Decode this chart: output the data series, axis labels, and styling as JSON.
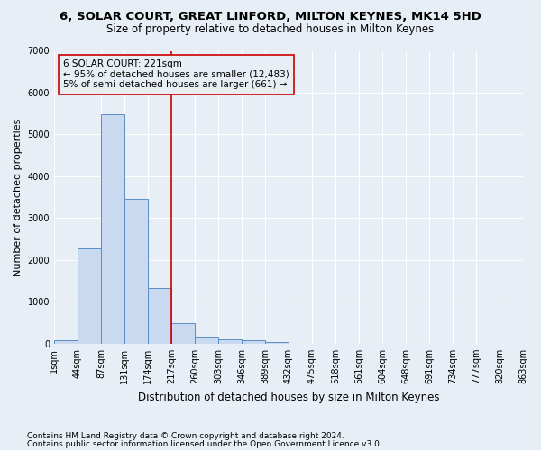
{
  "title1": "6, SOLAR COURT, GREAT LINFORD, MILTON KEYNES, MK14 5HD",
  "title2": "Size of property relative to detached houses in Milton Keynes",
  "xlabel": "Distribution of detached houses by size in Milton Keynes",
  "ylabel": "Number of detached properties",
  "bar_values": [
    75,
    2280,
    5480,
    3450,
    1320,
    480,
    165,
    105,
    75,
    40,
    0,
    0,
    0,
    0,
    0,
    0,
    0,
    0,
    0,
    0
  ],
  "bar_labels": [
    "1sqm",
    "44sqm",
    "87sqm",
    "131sqm",
    "174sqm",
    "217sqm",
    "260sqm",
    "303sqm",
    "346sqm",
    "389sqm",
    "432sqm",
    "475sqm",
    "518sqm",
    "561sqm",
    "604sqm",
    "648sqm",
    "691sqm",
    "734sqm",
    "777sqm",
    "820sqm",
    "863sqm"
  ],
  "bar_color": "#c9d9f0",
  "bar_edge_color": "#5b8ec4",
  "vline_x": 5,
  "vline_color": "#cc0000",
  "annotation_line1": "6 SOLAR COURT: 221sqm",
  "annotation_line2": "← 95% of detached houses are smaller (12,483)",
  "annotation_line3": "5% of semi-detached houses are larger (661) →",
  "annotation_box_color": "#cc0000",
  "background_color": "#e8eef5",
  "plot_bg_color": "#e8eef5",
  "ylim": [
    0,
    7000
  ],
  "yticks": [
    0,
    1000,
    2000,
    3000,
    4000,
    5000,
    6000,
    7000
  ],
  "footnote1": "Contains HM Land Registry data © Crown copyright and database right 2024.",
  "footnote2": "Contains public sector information licensed under the Open Government Licence v3.0.",
  "title1_fontsize": 9.5,
  "title2_fontsize": 8.5,
  "xlabel_fontsize": 8.5,
  "ylabel_fontsize": 8,
  "tick_fontsize": 7,
  "annotation_fontsize": 7.5,
  "footnote_fontsize": 6.5
}
